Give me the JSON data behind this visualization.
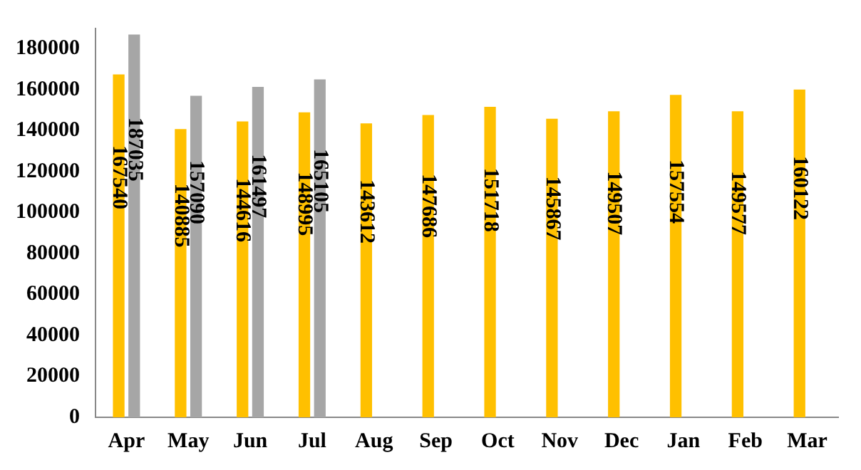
{
  "chart_data": {
    "type": "bar",
    "categories": [
      "Apr",
      "May",
      "Jun",
      "Jul",
      "Aug",
      "Sep",
      "Oct",
      "Nov",
      "Dec",
      "Jan",
      "Feb",
      "Mar"
    ],
    "series": [
      {
        "color": "#ffc000",
        "values": [
          167540,
          140885,
          144616,
          148995,
          143612,
          147686,
          151718,
          145867,
          149507,
          157554,
          149577,
          160122
        ]
      },
      {
        "color": "#a6a6a6",
        "values": [
          187035,
          157090,
          161497,
          165105,
          null,
          null,
          null,
          null,
          null,
          null,
          null,
          null
        ]
      }
    ],
    "ylim": [
      0,
      190000
    ],
    "yticks": [
      0,
      20000,
      40000,
      60000,
      80000,
      100000,
      120000,
      140000,
      160000,
      180000
    ],
    "grid": false,
    "legend": false,
    "data_labels": true
  }
}
